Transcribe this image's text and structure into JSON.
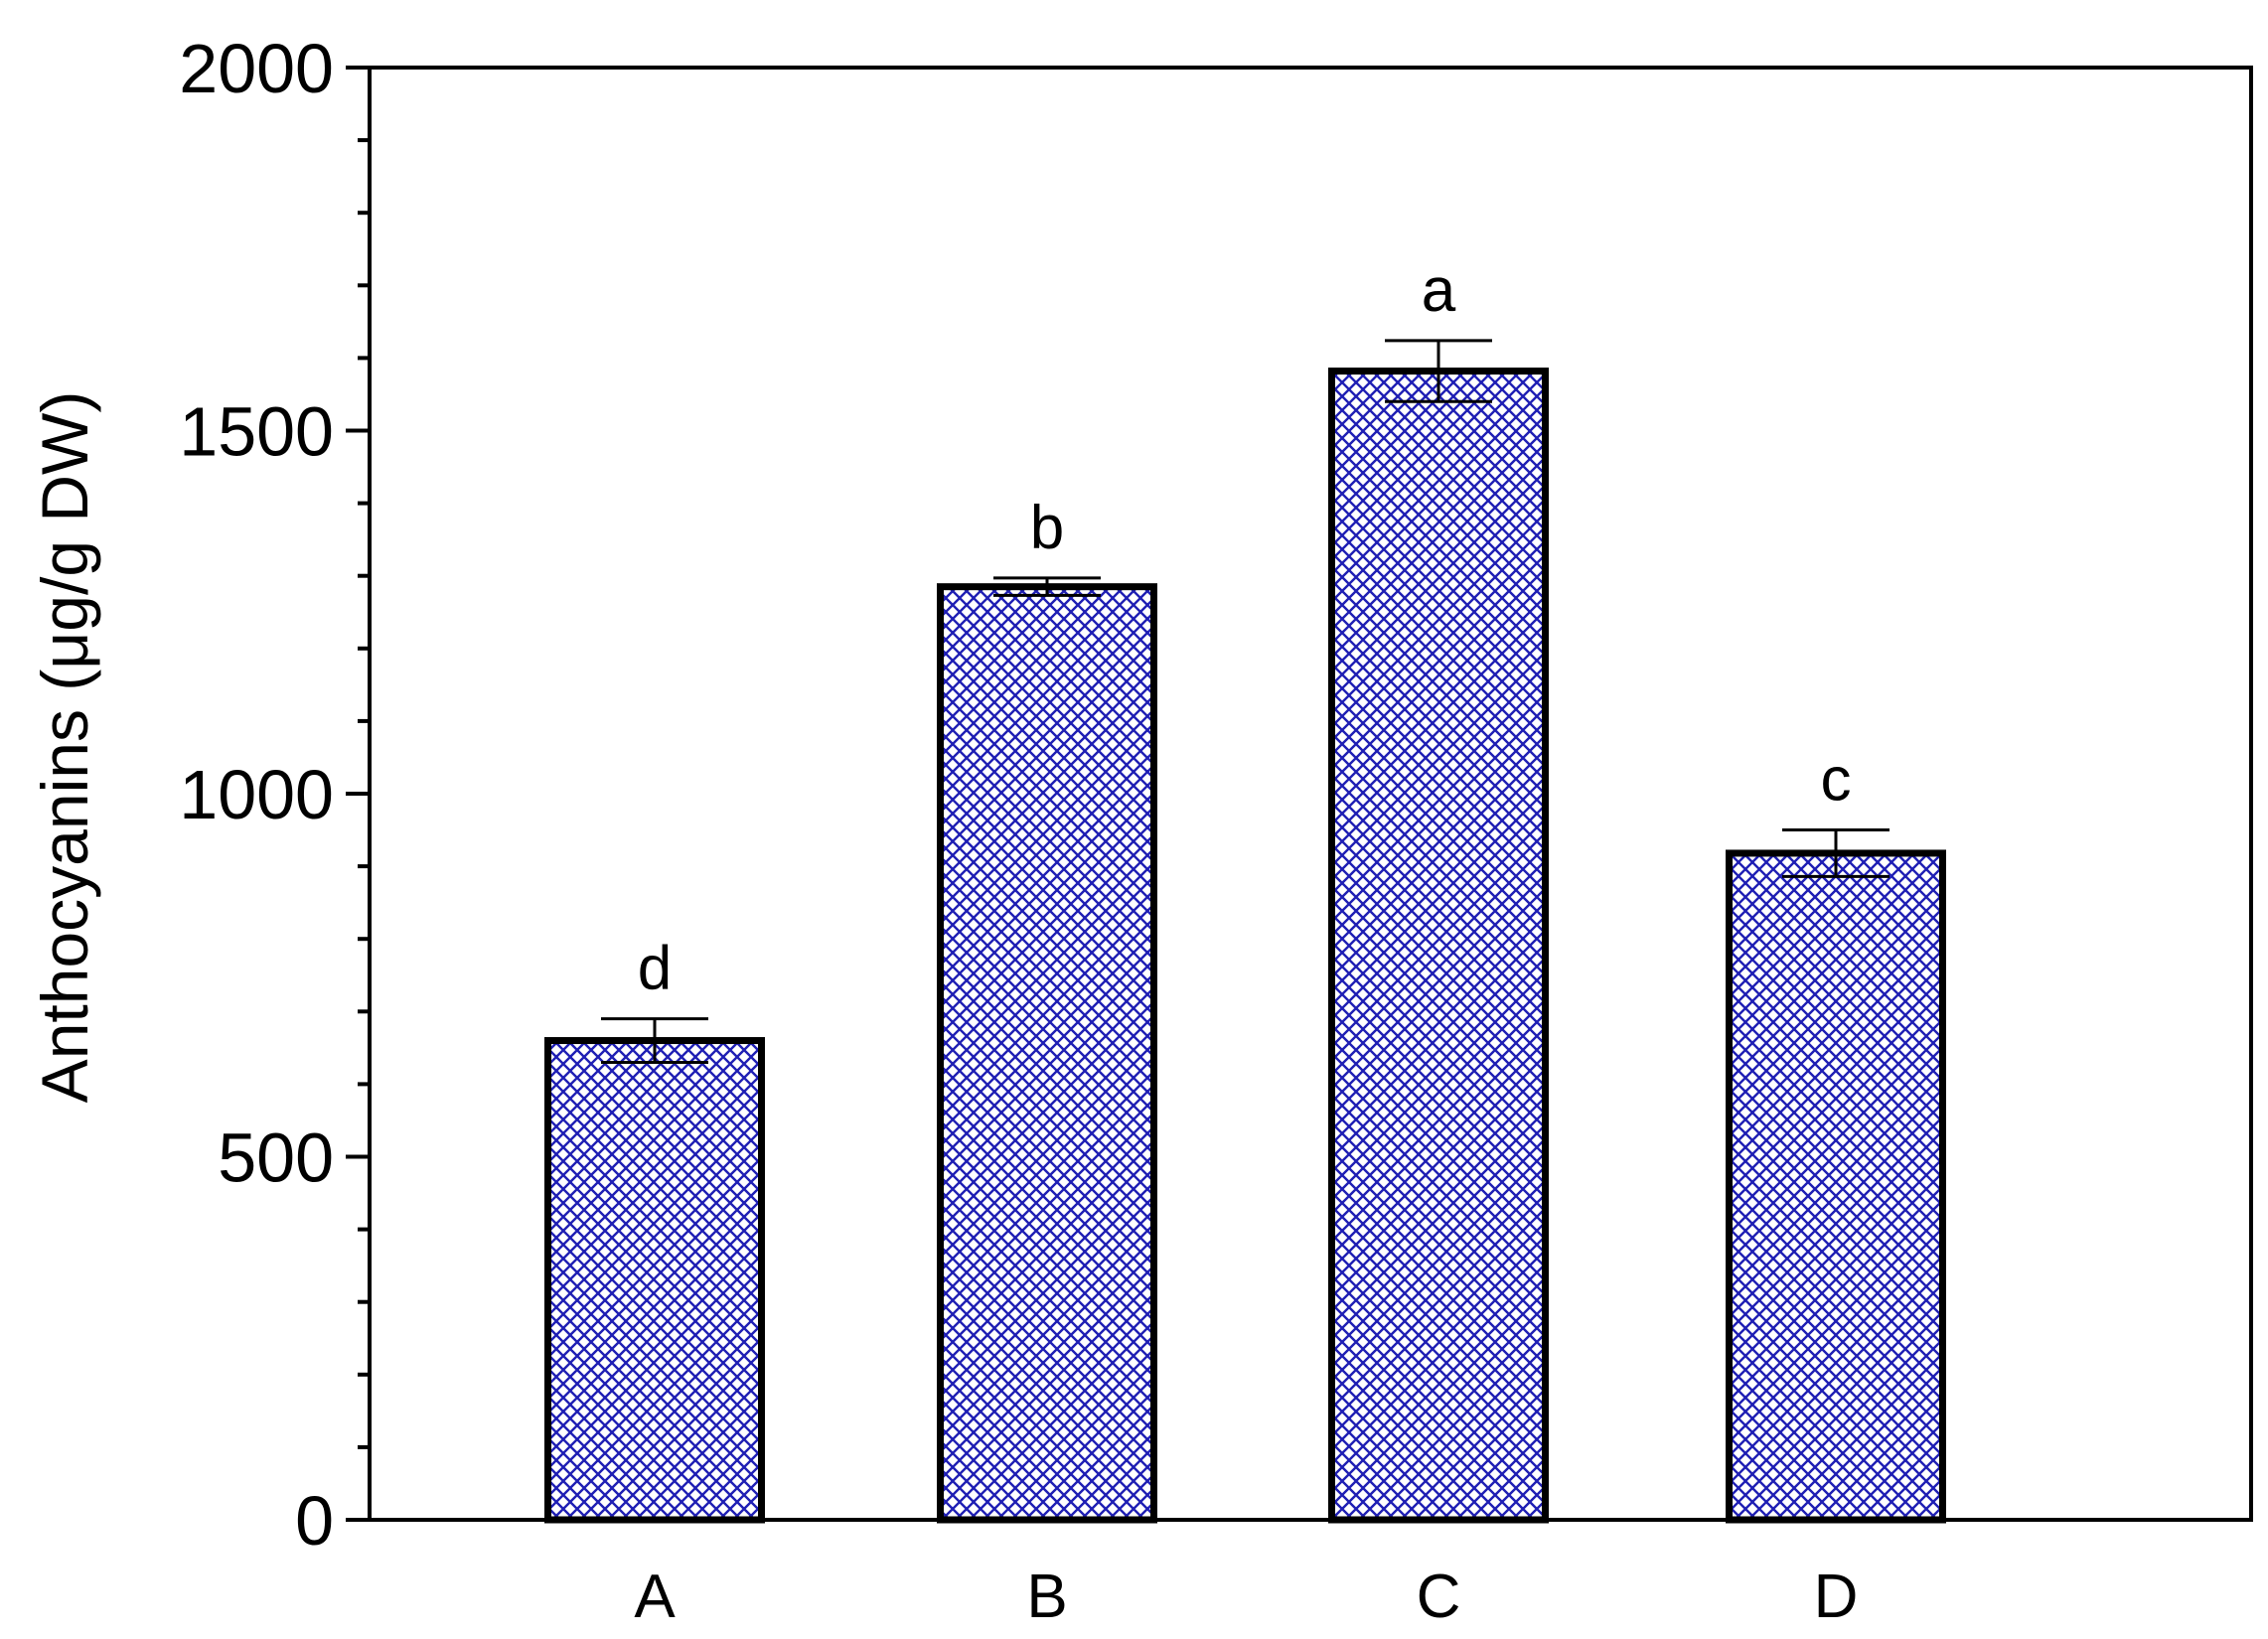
{
  "chart_data": {
    "type": "bar",
    "title": "",
    "xlabel": "",
    "ylabel": "Anthocyanins (μg/g DW)",
    "ylim": [
      0,
      2000
    ],
    "yticks_major": [
      0,
      500,
      1000,
      1500,
      2000
    ],
    "yticks_minor_step": 100,
    "grid": false,
    "legend": "none",
    "bar_pattern": "crosshatch",
    "colors": {
      "bar_fill": "#1f1fb4",
      "bar_background": "#ffffff",
      "bar_edge": "#000000",
      "axis": "#000000"
    },
    "categories": [
      "A",
      "B",
      "C",
      "D"
    ],
    "values": [
      660,
      1285,
      1582,
      918
    ],
    "errors": [
      30,
      12,
      42,
      32
    ],
    "significance": [
      "d",
      "b",
      "a",
      "c"
    ]
  }
}
